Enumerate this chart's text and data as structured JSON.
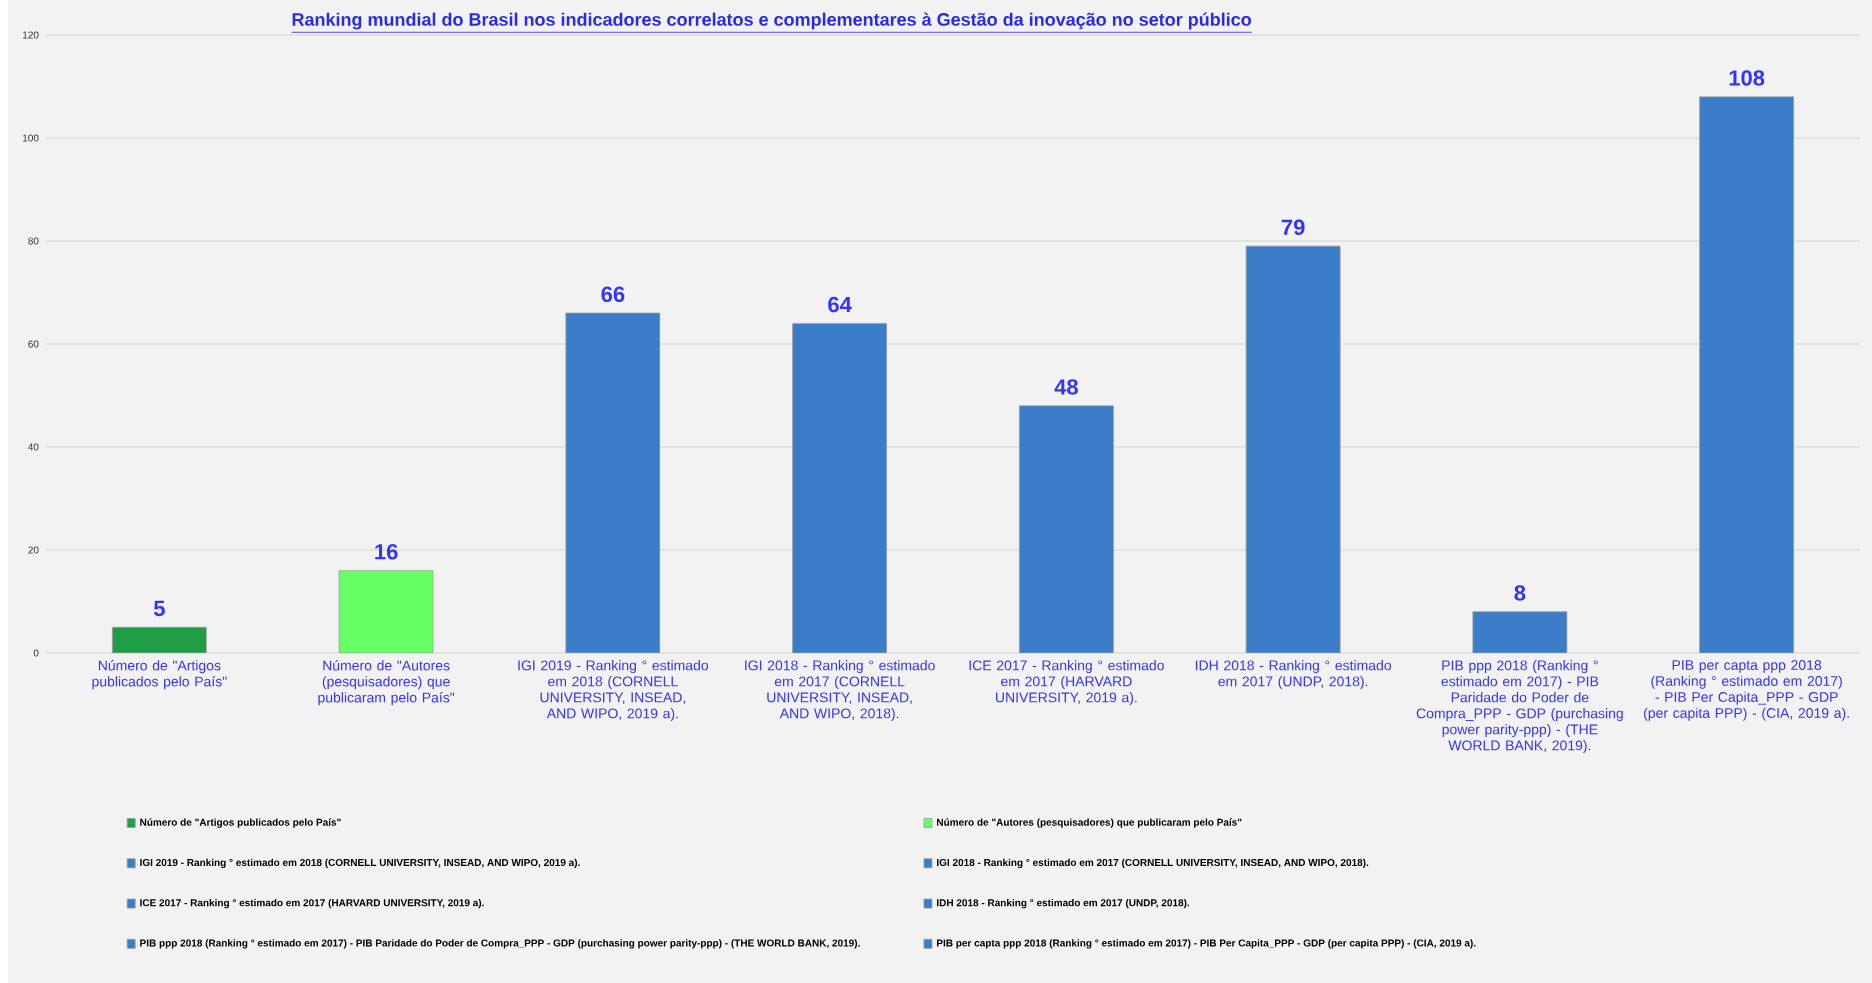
{
  "chart_data": {
    "type": "bar",
    "title": "Ranking mundial do Brasil nos indicadores correlatos e complementares à Gestão da inovação no setor público",
    "categories": [
      "Número de \"Artigos publicados pelo País\"",
      "Número de \"Autores (pesquisadores) que publicaram pelo País\"",
      "IGI 2019 - Ranking ° estimado em 2018 (CORNELL UNIVERSITY, INSEAD, AND WIPO, 2019 a).",
      "IGI 2018 - Ranking ° estimado em 2017 (CORNELL UNIVERSITY, INSEAD, AND WIPO, 2018).",
      "ICE 2017 - Ranking ° estimado em 2017 (HARVARD UNIVERSITY, 2019 a).",
      "IDH 2018 - Ranking ° estimado em 2017 (UNDP, 2018).",
      "PIB ppp 2018 (Ranking ° estimado em 2017) - PIB Paridade do Poder de Compra_PPP - GDP (purchasing power parity-ppp) - (THE WORLD BANK, 2019).",
      "PIB per capta ppp 2018 (Ranking ° estimado em 2017) - PIB Per Capita_PPP - GDP (per capita PPP) - (CIA, 2019 a)."
    ],
    "series": [
      {
        "name": "Número de \"Artigos publicados pelo País\"",
        "color": "#1f9e45",
        "values": [
          5,
          null,
          null,
          null,
          null,
          null,
          null,
          null
        ]
      },
      {
        "name": "Número de \"Autores (pesquisadores) que publicaram pelo País\"",
        "color": "#66ff66",
        "values": [
          null,
          16,
          null,
          null,
          null,
          null,
          null,
          null
        ]
      },
      {
        "name": "IGI 2019 - Ranking ° estimado em 2018 (CORNELL UNIVERSITY, INSEAD, AND WIPO, 2019 a).",
        "color": "#3b7dc9",
        "values": [
          null,
          null,
          66,
          null,
          null,
          null,
          null,
          null
        ]
      },
      {
        "name": "IGI 2018 - Ranking ° estimado em 2017 (CORNELL UNIVERSITY, INSEAD, AND WIPO, 2018).",
        "color": "#3b7dc9",
        "values": [
          null,
          null,
          null,
          64,
          null,
          null,
          null,
          null
        ]
      },
      {
        "name": "ICE 2017 - Ranking ° estimado em 2017 (HARVARD UNIVERSITY, 2019 a).",
        "color": "#3b7dc9",
        "values": [
          null,
          null,
          null,
          null,
          48,
          null,
          null,
          null
        ]
      },
      {
        "name": "IDH 2018 - Ranking ° estimado em 2017 (UNDP, 2018).",
        "color": "#3b7dc9",
        "values": [
          null,
          null,
          null,
          null,
          null,
          79,
          null,
          null
        ]
      },
      {
        "name": "PIB ppp 2018 (Ranking ° estimado em 2017) - PIB Paridade do Poder de  Compra_PPP - GDP (purchasing power parity-ppp) - (THE WORLD BANK, 2019).",
        "color": "#3b7dc9",
        "values": [
          null,
          null,
          null,
          null,
          null,
          null,
          8,
          null
        ]
      },
      {
        "name": "PIB per capta ppp 2018 (Ranking ° estimado em 2017) - PIB Per Capita_PPP - GDP (per capita PPP) - (CIA, 2019 a).",
        "color": "#3b7dc9",
        "values": [
          null,
          null,
          null,
          null,
          null,
          null,
          null,
          108
        ]
      }
    ],
    "ylim": [
      0,
      120
    ],
    "yticks": [
      0,
      20,
      40,
      60,
      80,
      100,
      120
    ],
    "data_labels": true,
    "grid": "y",
    "legend": "bottom"
  }
}
